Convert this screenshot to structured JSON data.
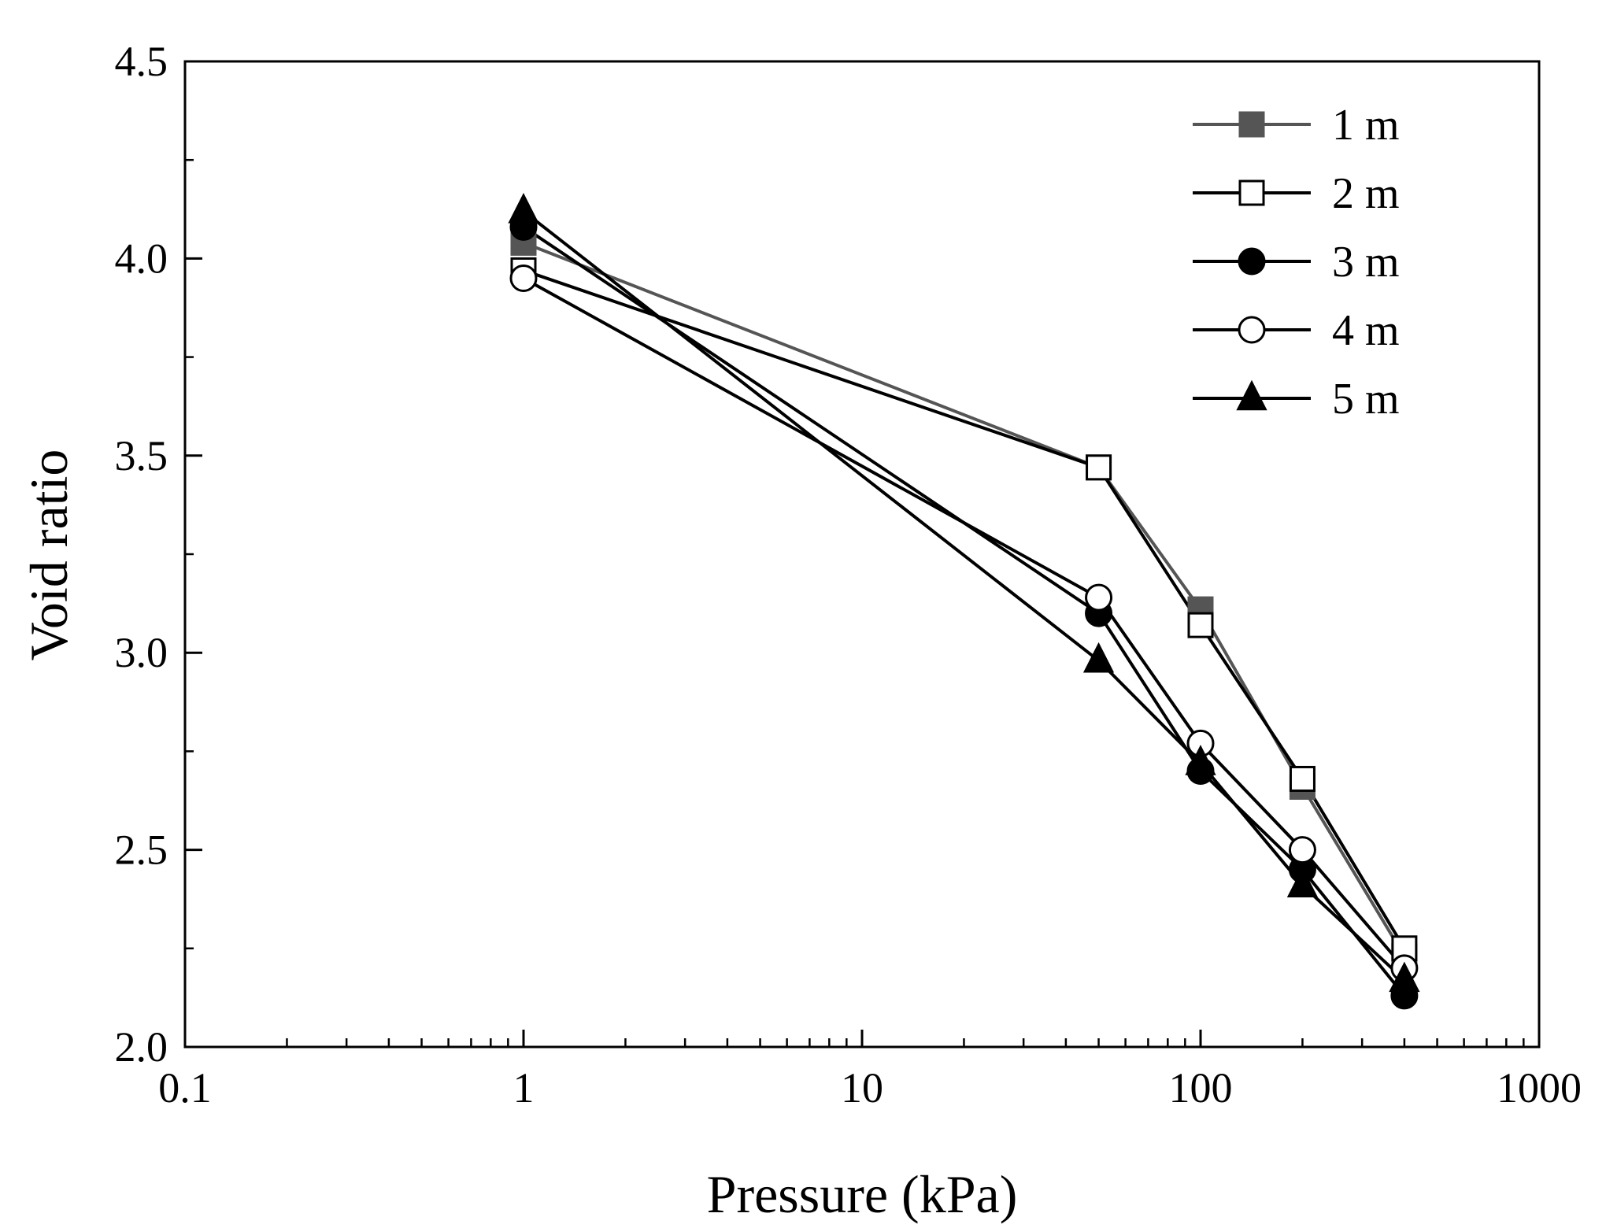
{
  "chart_data": {
    "type": "line",
    "title": "",
    "xlabel": "Pressure (kPa)",
    "ylabel": "Void ratio",
    "xscale": "log",
    "xlim": [
      0.1,
      1000
    ],
    "ylim": [
      2.0,
      4.5
    ],
    "xticks": [
      {
        "value": 0.1,
        "label": "0.1"
      },
      {
        "value": 1,
        "label": "1"
      },
      {
        "value": 10,
        "label": "10"
      },
      {
        "value": 100,
        "label": "100"
      },
      {
        "value": 1000,
        "label": "1000"
      }
    ],
    "yticks": [
      {
        "value": 2.0,
        "label": "2.0"
      },
      {
        "value": 2.5,
        "label": "2.5"
      },
      {
        "value": 3.0,
        "label": "3.0"
      },
      {
        "value": 3.5,
        "label": "3.5"
      },
      {
        "value": 4.0,
        "label": "4.0"
      },
      {
        "value": 4.5,
        "label": "4.5"
      }
    ],
    "grid": false,
    "legend_position": "top-right",
    "x": [
      1,
      50,
      100,
      200,
      400
    ],
    "series": [
      {
        "name": "1 m",
        "marker": "square-filled",
        "color": "#555555",
        "values": [
          4.04,
          3.47,
          3.11,
          2.66,
          2.23
        ]
      },
      {
        "name": "2 m",
        "marker": "square-open",
        "color": "#000000",
        "values": [
          3.97,
          3.47,
          3.07,
          2.68,
          2.25
        ]
      },
      {
        "name": "3 m",
        "marker": "circle-filled",
        "color": "#000000",
        "values": [
          4.08,
          3.1,
          2.7,
          2.45,
          2.13
        ]
      },
      {
        "name": "4 m",
        "marker": "circle-open",
        "color": "#000000",
        "values": [
          3.95,
          3.14,
          2.77,
          2.5,
          2.2
        ]
      },
      {
        "name": "5 m",
        "marker": "triangle-filled",
        "color": "#000000",
        "values": [
          4.12,
          2.98,
          2.72,
          2.41,
          2.17
        ]
      }
    ]
  }
}
